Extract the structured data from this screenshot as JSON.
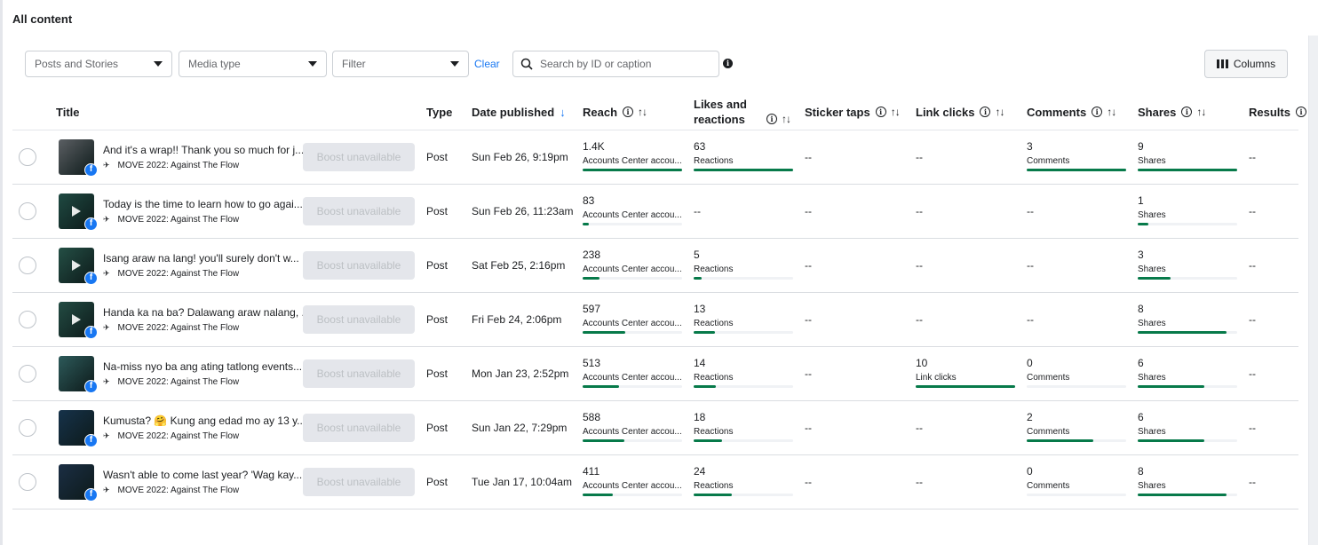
{
  "section_title": "All content",
  "toolbar": {
    "dropdown_posts": "Posts and Stories",
    "dropdown_media": "Media type",
    "dropdown_filter": "Filter",
    "clear": "Clear",
    "search_placeholder": "Search by ID or caption",
    "columns": "Columns"
  },
  "columns": {
    "title": "Title",
    "type": "Type",
    "date": "Date published",
    "reach": "Reach",
    "likes_line1": "Likes and",
    "likes_line2": "reactions",
    "sticker": "Sticker taps",
    "link": "Link clicks",
    "comments": "Comments",
    "shares": "Shares",
    "results": "Results"
  },
  "colors": {
    "accent": "#1877f2",
    "bar": "#077a4a",
    "track": "#f0f2f5"
  },
  "rows": [
    {
      "caption": "And it's a wrap!! Thank you so much for j...",
      "account": "MOVE 2022: Against The Flow",
      "boost": "Boost unavailable",
      "type": "Post",
      "date": "Sun Feb 26, 9:19pm",
      "thumb": "crowd-photo",
      "thumb_color": "#5b5f63",
      "video": false,
      "reach": {
        "value": "1.4K",
        "label": "Accounts Center accou...",
        "fill": 1.0
      },
      "likes": {
        "value": "63",
        "label": "Reactions",
        "fill": 1.0
      },
      "sticker": "--",
      "link": "--",
      "comments": {
        "value": "3",
        "label": "Comments",
        "fill": 1.0
      },
      "shares": {
        "value": "9",
        "label": "Shares",
        "fill": 1.0
      },
      "results": "--"
    },
    {
      "caption": "Today is the time to learn how to go agai...",
      "account": "MOVE 2022: Against The Flow",
      "boost": "Boost unavailable",
      "type": "Post",
      "date": "Sun Feb 26, 11:23am",
      "thumb": "video-thumb",
      "thumb_color": "#1f4a42",
      "video": true,
      "reach": {
        "value": "83",
        "label": "Accounts Center accou...",
        "fill": 0.06
      },
      "likes": "--",
      "sticker": "--",
      "link": "--",
      "comments": "--",
      "shares": {
        "value": "1",
        "label": "Shares",
        "fill": 0.11
      },
      "results": "--"
    },
    {
      "caption": "Isang araw na lang! you'll surely don't w...",
      "account": "MOVE 2022: Against The Flow",
      "boost": "Boost unavailable",
      "type": "Post",
      "date": "Sat Feb 25, 2:16pm",
      "thumb": "video-thumb",
      "thumb_color": "#244f45",
      "video": true,
      "reach": {
        "value": "238",
        "label": "Accounts Center accou...",
        "fill": 0.17
      },
      "likes": {
        "value": "5",
        "label": "Reactions",
        "fill": 0.08
      },
      "sticker": "--",
      "link": "--",
      "comments": "--",
      "shares": {
        "value": "3",
        "label": "Shares",
        "fill": 0.33
      },
      "results": "--"
    },
    {
      "caption": "Handa ka na ba? Dalawang araw nalang, ...",
      "account": "MOVE 2022: Against The Flow",
      "boost": "Boost unavailable",
      "type": "Post",
      "date": "Fri Feb 24, 2:06pm",
      "thumb": "video-thumb",
      "thumb_color": "#234c43",
      "video": true,
      "reach": {
        "value": "597",
        "label": "Accounts Center accou...",
        "fill": 0.43
      },
      "likes": {
        "value": "13",
        "label": "Reactions",
        "fill": 0.21
      },
      "sticker": "--",
      "link": "--",
      "comments": "--",
      "shares": {
        "value": "8",
        "label": "Shares",
        "fill": 0.89
      },
      "results": "--"
    },
    {
      "caption": "Na-miss nyo ba ang ating tatlong events...",
      "account": "MOVE 2022: Against The Flow",
      "boost": "Boost unavailable",
      "type": "Post",
      "date": "Mon Jan 23, 2:52pm",
      "thumb": "qr-photo",
      "thumb_color": "#2d5a5a",
      "video": false,
      "reach": {
        "value": "513",
        "label": "Accounts Center accou...",
        "fill": 0.37
      },
      "likes": {
        "value": "14",
        "label": "Reactions",
        "fill": 0.22
      },
      "sticker": "--",
      "link": {
        "value": "10",
        "label": "Link clicks",
        "fill": 1.0
      },
      "comments": {
        "value": "0",
        "label": "Comments",
        "fill": 0.0
      },
      "shares": {
        "value": "6",
        "label": "Shares",
        "fill": 0.67
      },
      "results": "--"
    },
    {
      "caption": "Kumusta? 🤗 Kung ang edad mo ay 13 y...",
      "account": "MOVE 2022: Against The Flow",
      "boost": "Boost unavailable",
      "type": "Post",
      "date": "Sun Jan 22, 7:29pm",
      "thumb": "poster",
      "thumb_color": "#16324a",
      "video": false,
      "reach": {
        "value": "588",
        "label": "Accounts Center accou...",
        "fill": 0.42
      },
      "likes": {
        "value": "18",
        "label": "Reactions",
        "fill": 0.29
      },
      "sticker": "--",
      "link": "--",
      "comments": {
        "value": "2",
        "label": "Comments",
        "fill": 0.67
      },
      "shares": {
        "value": "6",
        "label": "Shares",
        "fill": 0.67
      },
      "results": "--"
    },
    {
      "caption": "Wasn't able to come last year? 'Wag kay...",
      "account": "MOVE 2022: Against The Flow",
      "boost": "Boost unavailable",
      "type": "Post",
      "date": "Tue Jan 17, 10:04am",
      "thumb": "poster",
      "thumb_color": "#1b2e44",
      "video": false,
      "reach": {
        "value": "411",
        "label": "Accounts Center accou...",
        "fill": 0.3
      },
      "likes": {
        "value": "24",
        "label": "Reactions",
        "fill": 0.38
      },
      "sticker": "--",
      "link": "--",
      "comments": {
        "value": "0",
        "label": "Comments",
        "fill": 0.0
      },
      "shares": {
        "value": "8",
        "label": "Shares",
        "fill": 0.89
      },
      "results": "--"
    }
  ]
}
